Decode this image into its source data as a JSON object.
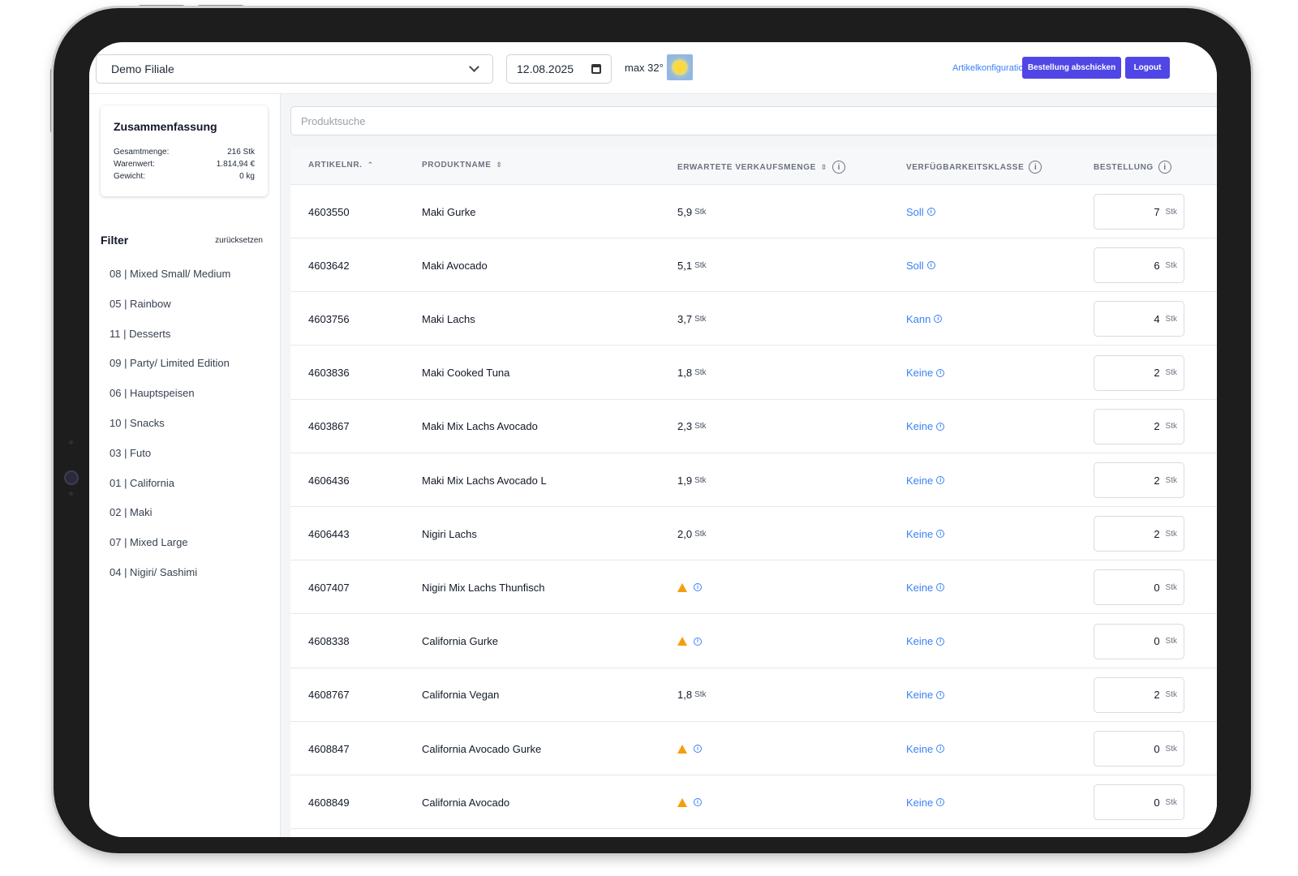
{
  "header": {
    "store_select": "Demo Filiale",
    "date": "12.08.2025",
    "temperature": "max 32°",
    "weather_icon": "sun-icon",
    "config_link": "Artikelkonfiguration",
    "submit_button": "Bestellung abschicken",
    "logout_button": "Logout"
  },
  "summary": {
    "title": "Zusammenfassung",
    "rows": [
      {
        "label": "Gesamtmenge:",
        "value": "216 Stk"
      },
      {
        "label": "Warenwert:",
        "value": "1.814,94 €"
      },
      {
        "label": "Gewicht:",
        "value": "0 kg"
      }
    ]
  },
  "filter": {
    "title": "Filter",
    "reset": "zurücksetzen",
    "items": [
      "08 | Mixed Small/ Medium",
      "05 | Rainbow",
      "11 | Desserts",
      "09 | Party/ Limited Edition",
      "06 | Hauptspeisen",
      "10 | Snacks",
      "03 | Futo",
      "01 | California",
      "02 | Maki",
      "07 | Mixed Large",
      "04 | Nigiri/ Sashimi"
    ]
  },
  "search": {
    "placeholder": "Produktsuche"
  },
  "table": {
    "headers": {
      "artikelnr": "ARTIKELNR.",
      "produktname": "PRODUKTNAME",
      "verkaufsmenge": "ERWARTETE VERKAUFSMENGE",
      "verfuegbarkeit": "VERFÜGBARKEITSKLASSE",
      "bestellung": "BESTELLUNG"
    },
    "unit": "Stk",
    "rows": [
      {
        "id": "4603550",
        "name": "Maki Gurke",
        "expected": "5,9",
        "avail": "Soll",
        "order": "7"
      },
      {
        "id": "4603642",
        "name": "Maki Avocado",
        "expected": "5,1",
        "avail": "Soll",
        "order": "6"
      },
      {
        "id": "4603756",
        "name": "Maki Lachs",
        "expected": "3,7",
        "avail": "Kann",
        "order": "4"
      },
      {
        "id": "4603836",
        "name": "Maki Cooked Tuna",
        "expected": "1,8",
        "avail": "Keine",
        "order": "2"
      },
      {
        "id": "4603867",
        "name": "Maki Mix Lachs Avocado",
        "expected": "2,3",
        "avail": "Keine",
        "order": "2"
      },
      {
        "id": "4606436",
        "name": "Maki Mix Lachs Avocado L",
        "expected": "1,9",
        "avail": "Keine",
        "order": "2"
      },
      {
        "id": "4606443",
        "name": "Nigiri Lachs",
        "expected": "2,0",
        "avail": "Keine",
        "order": "2"
      },
      {
        "id": "4607407",
        "name": "Nigiri Mix Lachs Thunfisch",
        "expected": null,
        "avail": "Keine",
        "order": "0"
      },
      {
        "id": "4608338",
        "name": "California Gurke",
        "expected": null,
        "avail": "Keine",
        "order": "0"
      },
      {
        "id": "4608767",
        "name": "California Vegan",
        "expected": "1,8",
        "avail": "Keine",
        "order": "2"
      },
      {
        "id": "4608847",
        "name": "California Avocado Gurke",
        "expected": null,
        "avail": "Keine",
        "order": "0"
      },
      {
        "id": "4608849",
        "name": "California Avocado",
        "expected": null,
        "avail": "Keine",
        "order": "0"
      }
    ]
  },
  "colors": {
    "accent": "#4f46e5",
    "link": "#3b82f6",
    "warning": "#f59e0b"
  }
}
